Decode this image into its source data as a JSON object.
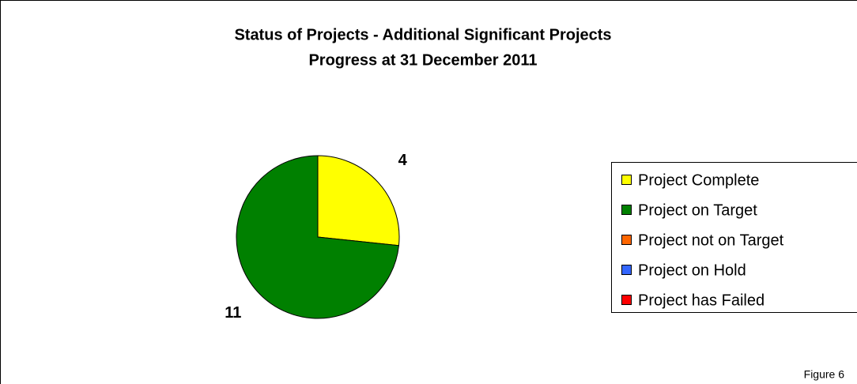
{
  "chart_data": {
    "type": "pie",
    "title": "Status of Projects - Additional Significant Projects",
    "subtitle": "Progress at 31 December 2011",
    "categories": [
      "Project Complete",
      "Project on Target",
      "Project not on Target",
      "Project on Hold",
      "Project has Failed"
    ],
    "values": [
      4,
      11,
      0,
      0,
      0
    ],
    "colors": [
      "#ffff00",
      "#008000",
      "#ff6600",
      "#3366ff",
      "#ff0000"
    ],
    "legend": "right",
    "annotation": "Figure 6"
  }
}
